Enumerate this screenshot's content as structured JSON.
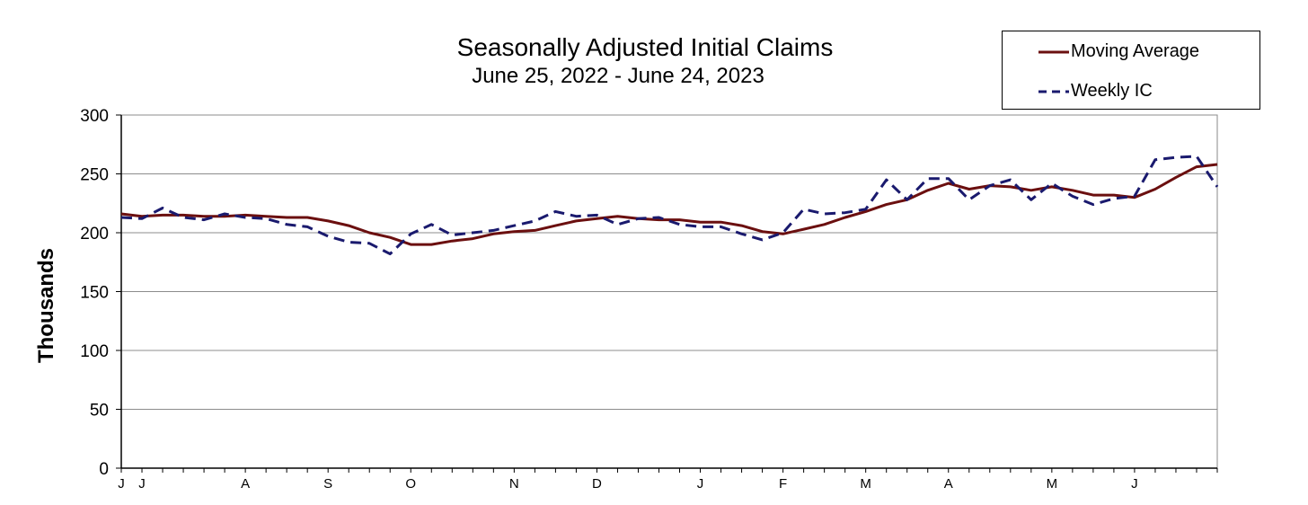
{
  "chart_data": {
    "type": "line",
    "title": "Seasonally Adjusted Initial Claims",
    "subtitle": "June 25, 2022 - June 24, 2023",
    "ylabel": "Thousands",
    "xlabel": "",
    "ylim": [
      0,
      300
    ],
    "yticks": [
      0,
      50,
      100,
      150,
      200,
      250,
      300
    ],
    "grid": true,
    "legend_position": "top-right",
    "month_ticks": [
      {
        "label": "J",
        "week": 0
      },
      {
        "label": "J",
        "week": 1
      },
      {
        "label": "A",
        "week": 6
      },
      {
        "label": "S",
        "week": 10
      },
      {
        "label": "O",
        "week": 14
      },
      {
        "label": "N",
        "week": 19
      },
      {
        "label": "D",
        "week": 23
      },
      {
        "label": "J",
        "week": 28
      },
      {
        "label": "F",
        "week": 32
      },
      {
        "label": "M",
        "week": 36
      },
      {
        "label": "A",
        "week": 40
      },
      {
        "label": "M",
        "week": 45
      },
      {
        "label": "J",
        "week": 49
      }
    ],
    "series": [
      {
        "name": "Moving Average",
        "color": "#6b0f0f",
        "style": "solid",
        "values": [
          216,
          214,
          215,
          215,
          214,
          214,
          215,
          214,
          213,
          213,
          210,
          206,
          200,
          196,
          190,
          190,
          193,
          195,
          199,
          201,
          202,
          206,
          210,
          212,
          214,
          212,
          211,
          211,
          209,
          209,
          206,
          201,
          199,
          203,
          207,
          213,
          218,
          224,
          228,
          236,
          242,
          237,
          240,
          239,
          236,
          239,
          236,
          232,
          232,
          230,
          237,
          247,
          256,
          258
        ]
      },
      {
        "name": "Weekly IC",
        "color": "#1a1a6e",
        "style": "dashed",
        "values": [
          213,
          212,
          221,
          213,
          211,
          216,
          213,
          212,
          207,
          205,
          197,
          192,
          191,
          182,
          199,
          207,
          198,
          200,
          202,
          206,
          210,
          218,
          214,
          215,
          207,
          212,
          213,
          207,
          205,
          205,
          199,
          194,
          200,
          220,
          216,
          217,
          220,
          245,
          228,
          246,
          246,
          228,
          240,
          245,
          228,
          242,
          231,
          224,
          229,
          231,
          262,
          264,
          265,
          239
        ]
      }
    ]
  }
}
